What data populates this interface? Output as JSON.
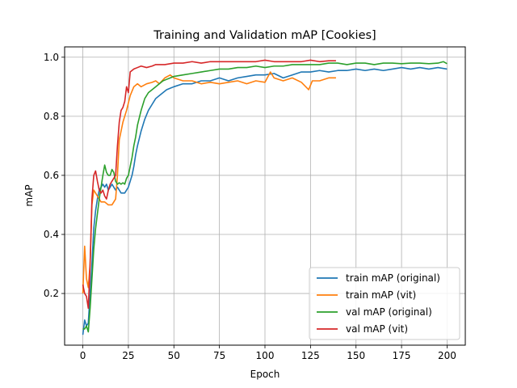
{
  "chart_data": {
    "type": "line",
    "title": "Training and Validation mAP [Cookies]",
    "xlabel": "Epoch",
    "ylabel": "mAP",
    "xlim": [
      -10,
      210
    ],
    "ylim": [
      0.025,
      1.035
    ],
    "xticks": [
      0,
      25,
      50,
      75,
      100,
      125,
      150,
      175,
      200
    ],
    "yticks": [
      0.2,
      0.4,
      0.6,
      0.8,
      1.0
    ],
    "xtick_labels": [
      "0",
      "25",
      "50",
      "75",
      "100",
      "125",
      "150",
      "175",
      "200"
    ],
    "ytick_labels": [
      "0.2",
      "0.4",
      "0.6",
      "0.8",
      "1.0"
    ],
    "grid": true,
    "legend_position": "lower-right",
    "series": [
      {
        "name": "train mAP (original)",
        "color": "#1f77b4",
        "points": [
          [
            0,
            0.06
          ],
          [
            1,
            0.11
          ],
          [
            2,
            0.09
          ],
          [
            3,
            0.1
          ],
          [
            4,
            0.2
          ],
          [
            5,
            0.3
          ],
          [
            6,
            0.42
          ],
          [
            7,
            0.48
          ],
          [
            8,
            0.52
          ],
          [
            9,
            0.55
          ],
          [
            10,
            0.56
          ],
          [
            11,
            0.57
          ],
          [
            12,
            0.56
          ],
          [
            13,
            0.57
          ],
          [
            14,
            0.55
          ],
          [
            15,
            0.56
          ],
          [
            16,
            0.57
          ],
          [
            17,
            0.56
          ],
          [
            18,
            0.55
          ],
          [
            19,
            0.56
          ],
          [
            20,
            0.55
          ],
          [
            21,
            0.54
          ],
          [
            22,
            0.54
          ],
          [
            23,
            0.54
          ],
          [
            24,
            0.55
          ],
          [
            25,
            0.56
          ],
          [
            26,
            0.58
          ],
          [
            27,
            0.6
          ],
          [
            28,
            0.63
          ],
          [
            29,
            0.67
          ],
          [
            30,
            0.7
          ],
          [
            32,
            0.75
          ],
          [
            34,
            0.79
          ],
          [
            36,
            0.82
          ],
          [
            38,
            0.84
          ],
          [
            40,
            0.86
          ],
          [
            42,
            0.87
          ],
          [
            44,
            0.88
          ],
          [
            46,
            0.89
          ],
          [
            48,
            0.895
          ],
          [
            50,
            0.9
          ],
          [
            55,
            0.91
          ],
          [
            60,
            0.91
          ],
          [
            65,
            0.92
          ],
          [
            70,
            0.92
          ],
          [
            75,
            0.93
          ],
          [
            80,
            0.92
          ],
          [
            85,
            0.93
          ],
          [
            90,
            0.935
          ],
          [
            95,
            0.94
          ],
          [
            100,
            0.94
          ],
          [
            105,
            0.945
          ],
          [
            110,
            0.93
          ],
          [
            115,
            0.94
          ],
          [
            120,
            0.95
          ],
          [
            125,
            0.95
          ],
          [
            130,
            0.955
          ],
          [
            135,
            0.95
          ],
          [
            140,
            0.955
          ],
          [
            145,
            0.955
          ],
          [
            150,
            0.96
          ],
          [
            155,
            0.955
          ],
          [
            160,
            0.96
          ],
          [
            165,
            0.955
          ],
          [
            170,
            0.96
          ],
          [
            175,
            0.965
          ],
          [
            180,
            0.96
          ],
          [
            185,
            0.965
          ],
          [
            190,
            0.96
          ],
          [
            195,
            0.965
          ],
          [
            200,
            0.96
          ]
        ]
      },
      {
        "name": "train mAP (vit)",
        "color": "#ff7f0e",
        "points": [
          [
            0,
            0.2
          ],
          [
            1,
            0.36
          ],
          [
            2,
            0.25
          ],
          [
            3,
            0.22
          ],
          [
            4,
            0.3
          ],
          [
            5,
            0.5
          ],
          [
            6,
            0.55
          ],
          [
            7,
            0.54
          ],
          [
            8,
            0.53
          ],
          [
            9,
            0.52
          ],
          [
            10,
            0.51
          ],
          [
            12,
            0.51
          ],
          [
            14,
            0.5
          ],
          [
            16,
            0.5
          ],
          [
            18,
            0.52
          ],
          [
            19,
            0.6
          ],
          [
            20,
            0.72
          ],
          [
            22,
            0.78
          ],
          [
            24,
            0.82
          ],
          [
            26,
            0.87
          ],
          [
            28,
            0.9
          ],
          [
            30,
            0.91
          ],
          [
            32,
            0.9
          ],
          [
            35,
            0.91
          ],
          [
            38,
            0.915
          ],
          [
            40,
            0.92
          ],
          [
            42,
            0.91
          ],
          [
            45,
            0.93
          ],
          [
            48,
            0.94
          ],
          [
            50,
            0.93
          ],
          [
            55,
            0.92
          ],
          [
            60,
            0.92
          ],
          [
            65,
            0.91
          ],
          [
            70,
            0.915
          ],
          [
            75,
            0.91
          ],
          [
            80,
            0.915
          ],
          [
            85,
            0.92
          ],
          [
            90,
            0.91
          ],
          [
            95,
            0.92
          ],
          [
            100,
            0.915
          ],
          [
            103,
            0.95
          ],
          [
            105,
            0.93
          ],
          [
            110,
            0.92
          ],
          [
            115,
            0.93
          ],
          [
            120,
            0.915
          ],
          [
            124,
            0.89
          ],
          [
            126,
            0.92
          ],
          [
            130,
            0.92
          ],
          [
            135,
            0.93
          ],
          [
            139,
            0.93
          ]
        ]
      },
      {
        "name": "val mAP (original)",
        "color": "#2ca02c",
        "points": [
          [
            0,
            0.08
          ],
          [
            1,
            0.08
          ],
          [
            2,
            0.09
          ],
          [
            3,
            0.07
          ],
          [
            4,
            0.15
          ],
          [
            5,
            0.25
          ],
          [
            6,
            0.35
          ],
          [
            7,
            0.42
          ],
          [
            8,
            0.47
          ],
          [
            9,
            0.52
          ],
          [
            10,
            0.56
          ],
          [
            11,
            0.6
          ],
          [
            12,
            0.635
          ],
          [
            13,
            0.61
          ],
          [
            14,
            0.6
          ],
          [
            15,
            0.6
          ],
          [
            16,
            0.62
          ],
          [
            17,
            0.61
          ],
          [
            18,
            0.58
          ],
          [
            19,
            0.57
          ],
          [
            20,
            0.575
          ],
          [
            21,
            0.57
          ],
          [
            22,
            0.575
          ],
          [
            23,
            0.57
          ],
          [
            24,
            0.59
          ],
          [
            25,
            0.6
          ],
          [
            26,
            0.63
          ],
          [
            27,
            0.66
          ],
          [
            28,
            0.7
          ],
          [
            29,
            0.73
          ],
          [
            30,
            0.77
          ],
          [
            32,
            0.82
          ],
          [
            34,
            0.86
          ],
          [
            36,
            0.88
          ],
          [
            38,
            0.89
          ],
          [
            40,
            0.9
          ],
          [
            42,
            0.91
          ],
          [
            44,
            0.92
          ],
          [
            46,
            0.925
          ],
          [
            48,
            0.93
          ],
          [
            50,
            0.935
          ],
          [
            55,
            0.94
          ],
          [
            60,
            0.945
          ],
          [
            65,
            0.95
          ],
          [
            70,
            0.955
          ],
          [
            75,
            0.96
          ],
          [
            80,
            0.96
          ],
          [
            85,
            0.965
          ],
          [
            90,
            0.965
          ],
          [
            95,
            0.97
          ],
          [
            100,
            0.965
          ],
          [
            105,
            0.97
          ],
          [
            110,
            0.97
          ],
          [
            115,
            0.975
          ],
          [
            120,
            0.975
          ],
          [
            125,
            0.975
          ],
          [
            130,
            0.975
          ],
          [
            135,
            0.98
          ],
          [
            140,
            0.98
          ],
          [
            145,
            0.975
          ],
          [
            150,
            0.98
          ],
          [
            155,
            0.98
          ],
          [
            160,
            0.975
          ],
          [
            165,
            0.98
          ],
          [
            170,
            0.98
          ],
          [
            175,
            0.978
          ],
          [
            180,
            0.98
          ],
          [
            185,
            0.98
          ],
          [
            190,
            0.978
          ],
          [
            195,
            0.98
          ],
          [
            198,
            0.985
          ],
          [
            200,
            0.978
          ]
        ]
      },
      {
        "name": "val mAP (vit)",
        "color": "#d62728",
        "points": [
          [
            0,
            0.23
          ],
          [
            1,
            0.2
          ],
          [
            2,
            0.19
          ],
          [
            3,
            0.15
          ],
          [
            4,
            0.3
          ],
          [
            5,
            0.52
          ],
          [
            6,
            0.6
          ],
          [
            7,
            0.615
          ],
          [
            8,
            0.58
          ],
          [
            9,
            0.55
          ],
          [
            10,
            0.54
          ],
          [
            11,
            0.55
          ],
          [
            12,
            0.53
          ],
          [
            13,
            0.52
          ],
          [
            14,
            0.55
          ],
          [
            15,
            0.57
          ],
          [
            16,
            0.58
          ],
          [
            17,
            0.59
          ],
          [
            18,
            0.6
          ],
          [
            19,
            0.7
          ],
          [
            20,
            0.78
          ],
          [
            21,
            0.82
          ],
          [
            22,
            0.83
          ],
          [
            23,
            0.85
          ],
          [
            24,
            0.9
          ],
          [
            25,
            0.88
          ],
          [
            26,
            0.95
          ],
          [
            28,
            0.96
          ],
          [
            30,
            0.965
          ],
          [
            32,
            0.97
          ],
          [
            35,
            0.965
          ],
          [
            38,
            0.97
          ],
          [
            40,
            0.975
          ],
          [
            45,
            0.975
          ],
          [
            50,
            0.98
          ],
          [
            55,
            0.98
          ],
          [
            60,
            0.985
          ],
          [
            65,
            0.98
          ],
          [
            70,
            0.985
          ],
          [
            75,
            0.985
          ],
          [
            80,
            0.985
          ],
          [
            85,
            0.985
          ],
          [
            90,
            0.985
          ],
          [
            95,
            0.985
          ],
          [
            100,
            0.99
          ],
          [
            105,
            0.985
          ],
          [
            110,
            0.985
          ],
          [
            115,
            0.985
          ],
          [
            120,
            0.985
          ],
          [
            125,
            0.99
          ],
          [
            130,
            0.985
          ],
          [
            135,
            0.988
          ],
          [
            139,
            0.988
          ]
        ]
      }
    ]
  }
}
